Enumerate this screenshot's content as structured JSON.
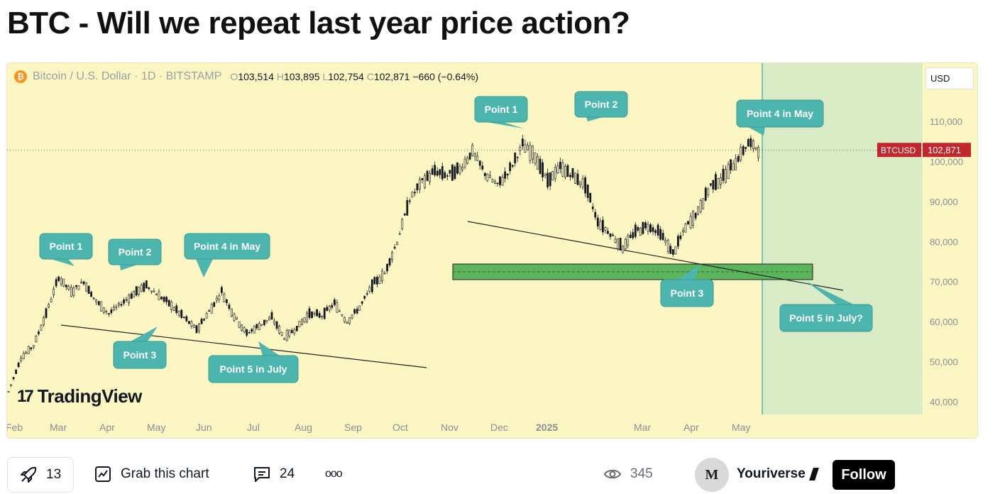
{
  "page": {
    "title": "BTC - Will we repeat last year price action?"
  },
  "symbol_bar": {
    "coin_glyph": "₿",
    "name": "Bitcoin / U.S. Dollar · 1D · BITSTAMP",
    "o_key": "O",
    "o": "103,514",
    "h_key": "H",
    "h": "103,895",
    "l_key": "L",
    "l": "102,754",
    "c_key": "C",
    "c": "102,871",
    "change": "−660 (−0.64%)"
  },
  "currency_button": "USD",
  "watermark": "TradingView",
  "bottom_bar": {
    "boosts": "13",
    "grab": "Grab this chart",
    "comments": "24",
    "more": "ooo",
    "views": "345",
    "author": "Youriverse",
    "author_initial": "M",
    "follow": "Follow"
  },
  "colors": {
    "background": "#fcf6c3",
    "projection_zone": "#d8ebc4",
    "callout": "#4cb5ae",
    "support_zone": "#5bb35c",
    "price_label": "#c1272d",
    "candle": "#131722"
  },
  "chart_data": {
    "type": "candlestick",
    "symbol": "BTCUSD",
    "last_price": 102871,
    "y_axis": {
      "min": 40000,
      "max": 110000,
      "ticks": [
        "110,000",
        "100,000",
        "90,000",
        "80,000",
        "70,000",
        "60,000",
        "50,000",
        "40,000"
      ],
      "tick_values": [
        110000,
        100000,
        90000,
        80000,
        70000,
        60000,
        50000,
        40000
      ]
    },
    "x_axis": {
      "ticks": [
        "Feb",
        "Mar",
        "Apr",
        "May",
        "Jun",
        "Jul",
        "Aug",
        "Sep",
        "Oct",
        "Nov",
        "Dec",
        "2025",
        "Mar",
        "Apr",
        "May"
      ]
    },
    "price_path": [
      [
        0,
        42500
      ],
      [
        1,
        51000
      ],
      [
        2,
        54000
      ],
      [
        3,
        62000
      ],
      [
        4,
        71000
      ],
      [
        5,
        67500
      ],
      [
        6,
        70000
      ],
      [
        7,
        65000
      ],
      [
        8,
        62000
      ],
      [
        9,
        64500
      ],
      [
        10,
        67000
      ],
      [
        11,
        69000
      ],
      [
        12,
        66500
      ],
      [
        13,
        64000
      ],
      [
        14,
        61000
      ],
      [
        15,
        58000
      ],
      [
        16,
        62500
      ],
      [
        17,
        67500
      ],
      [
        18,
        61500
      ],
      [
        19,
        57000
      ],
      [
        20,
        59000
      ],
      [
        21,
        61000
      ],
      [
        22,
        56000
      ],
      [
        23,
        58500
      ],
      [
        24,
        62000
      ],
      [
        25,
        61500
      ],
      [
        26,
        64500
      ],
      [
        27,
        60000
      ],
      [
        28,
        63500
      ],
      [
        29,
        69000
      ],
      [
        30,
        72000
      ],
      [
        31,
        80000
      ],
      [
        32,
        90500
      ],
      [
        33,
        95000
      ],
      [
        34,
        97500
      ],
      [
        35,
        96500
      ],
      [
        36,
        98000
      ],
      [
        37,
        102500
      ],
      [
        38,
        97000
      ],
      [
        39,
        94000
      ],
      [
        40,
        98000
      ],
      [
        41,
        104000
      ],
      [
        42,
        101500
      ],
      [
        43,
        95000
      ],
      [
        44,
        98500
      ],
      [
        45,
        96500
      ],
      [
        46,
        94000
      ],
      [
        47,
        85000
      ],
      [
        48,
        82000
      ],
      [
        49,
        78500
      ],
      [
        50,
        82500
      ],
      [
        51,
        84000
      ],
      [
        52,
        82000
      ],
      [
        53,
        77000
      ],
      [
        54,
        83500
      ],
      [
        55,
        87500
      ],
      [
        56,
        94000
      ],
      [
        57,
        96000
      ],
      [
        58,
        100000
      ],
      [
        59,
        104500
      ],
      [
        60,
        102871
      ]
    ],
    "annotations": [
      {
        "text": "Point 1"
      },
      {
        "text": "Point 2"
      },
      {
        "text": "Point 3"
      },
      {
        "text": "Point 4 in May"
      },
      {
        "text": "Point 5 in July"
      },
      {
        "text": "Point 1"
      },
      {
        "text": "Point 2"
      },
      {
        "text": "Point 3"
      },
      {
        "text": "Point 4 in May"
      },
      {
        "text": "Point 5 in July?"
      }
    ]
  }
}
